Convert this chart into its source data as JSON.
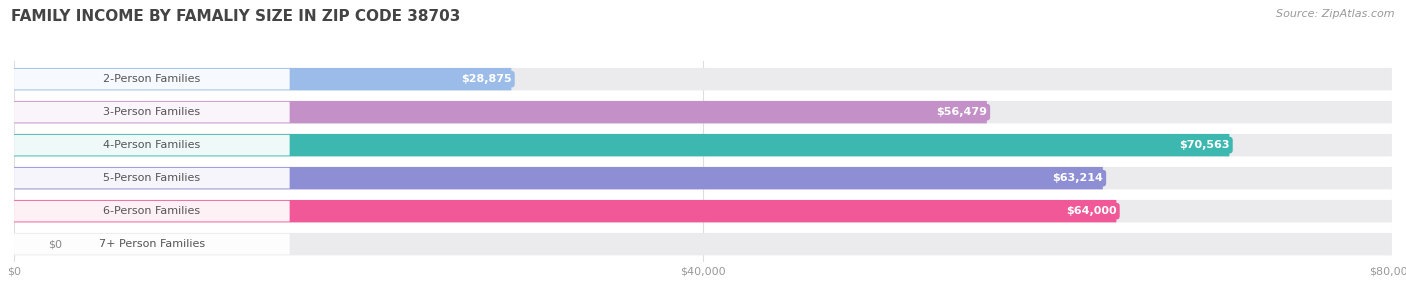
{
  "title": "FAMILY INCOME BY FAMALIY SIZE IN ZIP CODE 38703",
  "source": "Source: ZipAtlas.com",
  "categories": [
    "2-Person Families",
    "3-Person Families",
    "4-Person Families",
    "5-Person Families",
    "6-Person Families",
    "7+ Person Families"
  ],
  "values": [
    28875,
    56479,
    70563,
    63214,
    64000,
    0
  ],
  "bar_colors": [
    "#9BBCE8",
    "#C490C8",
    "#3CB8B0",
    "#8E8ED4",
    "#F05898",
    "#F5D4A0"
  ],
  "xlim": [
    0,
    80000
  ],
  "xticks": [
    0,
    40000,
    80000
  ],
  "xticklabels": [
    "$0",
    "$40,000",
    "$80,000"
  ],
  "value_labels": [
    "$28,875",
    "$56,479",
    "$70,563",
    "$63,214",
    "$64,000",
    "$0"
  ],
  "background_color": "#ffffff",
  "bar_bg_color": "#ebebee",
  "title_fontsize": 11,
  "source_fontsize": 8,
  "label_fontsize": 8,
  "value_fontsize": 8
}
